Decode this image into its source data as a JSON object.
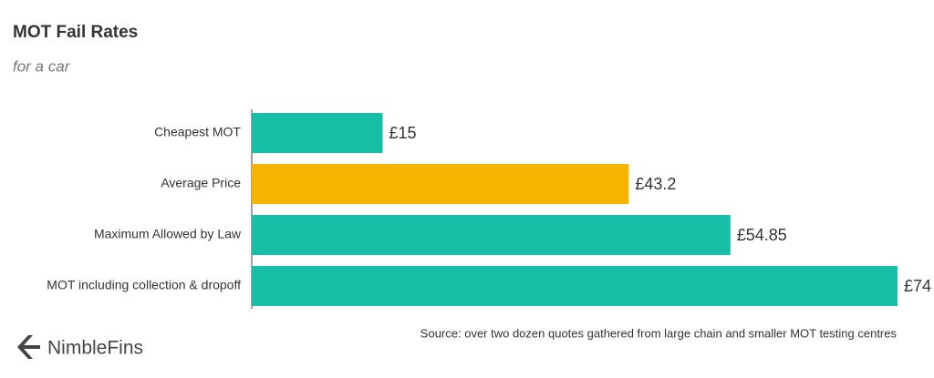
{
  "chart_data": {
    "type": "bar",
    "orientation": "horizontal",
    "title": "MOT Fail Rates",
    "subtitle": "for a car",
    "categories": [
      "Cheapest MOT",
      "Average Price",
      "Maximum Allowed by Law",
      "MOT including collection & dropoff"
    ],
    "values": [
      15,
      43.2,
      54.85,
      74
    ],
    "value_labels": [
      "£15",
      "£43.2",
      "£54.85",
      "£74"
    ],
    "colors": [
      "#16bfa6",
      "#f7b500",
      "#16bfa6",
      "#16bfa6"
    ],
    "source": "Source: over two dozen quotes gathered from large chain and smaller MOT testing centres",
    "brand": "NimbleFins"
  }
}
